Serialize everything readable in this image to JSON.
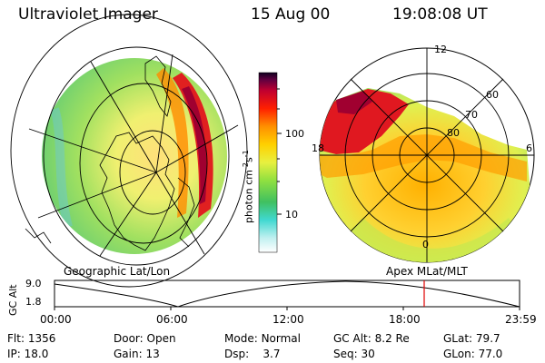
{
  "header": {
    "title": "Ultraviolet Imager",
    "date": "15 Aug 00",
    "time": "19:08:08 UT"
  },
  "colorbar": {
    "unit_prefix": "photon cm",
    "unit_exp1": "-2",
    "unit_mid": "s",
    "unit_exp2": "-1",
    "tick_100": "100",
    "tick_10": "10"
  },
  "polar_plot": {
    "lat_labels": [
      "80",
      "70",
      "60"
    ],
    "mlt_labels": {
      "top": "12",
      "left": "18",
      "right": "6",
      "bottom": "0"
    }
  },
  "map_labels": {
    "left": "Geographic Lat/Lon",
    "right": "Apex MLat/MLT"
  },
  "altitude_plot": {
    "ylabel": "GC Alt",
    "y_ticks": [
      "9.0",
      "1.8"
    ],
    "x_ticks": [
      "00:00",
      "06:00",
      "12:00",
      "18:00",
      "23:59"
    ]
  },
  "info": {
    "row1": [
      {
        "label": "Flt:",
        "value": "1356"
      },
      {
        "label": "Door:",
        "value": "Open"
      },
      {
        "label": "Mode:",
        "value": "Normal"
      },
      {
        "label": "GC Alt:",
        "value": "8.2 Re"
      },
      {
        "label": "GLat:",
        "value": "79.7"
      }
    ],
    "row2": [
      {
        "label": "IP:",
        "value": "18.0"
      },
      {
        "label": "Gain:",
        "value": "13"
      },
      {
        "label": "Dsp:",
        "value": "3.7"
      },
      {
        "label": "Seq:",
        "value": "30"
      },
      {
        "label": "GLon:",
        "value": "77.0"
      }
    ]
  },
  "colors": {
    "marker": "#e00000"
  }
}
